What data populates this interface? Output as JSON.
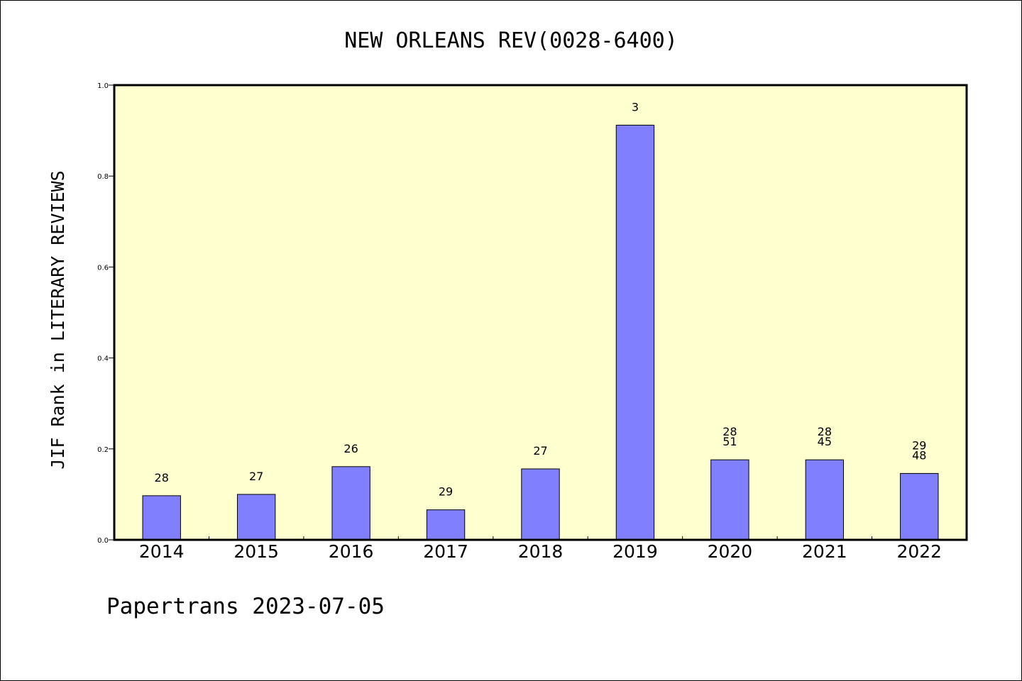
{
  "chart_data": {
    "type": "bar",
    "title": "NEW ORLEANS REV(0028-6400)",
    "xlabel": "",
    "ylabel": "JIF Rank in LITERARY REVIEWS",
    "ylim": [
      0,
      1.0
    ],
    "yticks": [
      "0.0",
      "0.2",
      "0.4",
      "0.6",
      "0.8",
      "1.0"
    ],
    "categories": [
      "2014",
      "2015",
      "2016",
      "2017",
      "2018",
      "2019",
      "2020",
      "2021",
      "2022"
    ],
    "values": [
      0.097,
      0.1,
      0.161,
      0.066,
      0.156,
      0.912,
      0.176,
      0.176,
      0.146
    ],
    "data_labels": [
      [
        "28"
      ],
      [
        "27"
      ],
      [
        "26"
      ],
      [
        "29"
      ],
      [
        "27"
      ],
      [
        "3"
      ],
      [
        "28",
        "51"
      ],
      [
        "28",
        "45"
      ],
      [
        "29",
        "48"
      ]
    ],
    "grid": false,
    "legend": "none",
    "colors": {
      "plot_background": "#ffffd0",
      "bar_fill": "#8080ff",
      "bar_stroke": "#000000"
    }
  },
  "footer": {
    "text": "Papertrans 2023-07-05"
  }
}
